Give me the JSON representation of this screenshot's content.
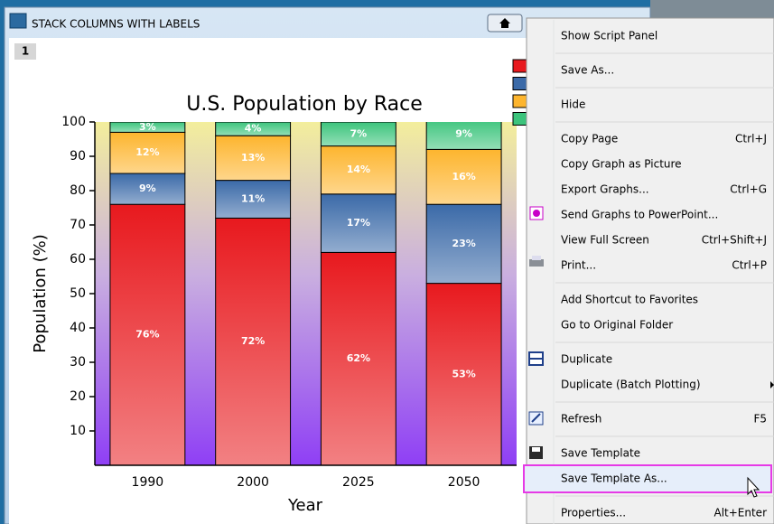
{
  "window": {
    "title": "STACK COLUMNS WITH LABELS",
    "tab": "1"
  },
  "chart_data": {
    "type": "bar",
    "stacked": true,
    "title": "U.S. Population by Race",
    "xlabel": "Year",
    "ylabel": "Population (%)",
    "categories": [
      "1990",
      "2000",
      "2025",
      "2050"
    ],
    "series": [
      {
        "color": "#e8191e",
        "values": [
          76,
          72,
          62,
          53
        ],
        "value_labels": [
          "76%",
          "72%",
          "62%",
          "53%"
        ]
      },
      {
        "color": "#3b6aa8",
        "values": [
          9,
          11,
          17,
          23
        ],
        "value_labels": [
          "9%",
          "11%",
          "17%",
          "23%"
        ]
      },
      {
        "color": "#fdb52e",
        "values": [
          12,
          13,
          14,
          16
        ],
        "value_labels": [
          "12%",
          "13%",
          "14%",
          "16%"
        ]
      },
      {
        "color": "#3cc47c",
        "values": [
          3,
          4,
          7,
          9
        ],
        "value_labels": [
          "3%",
          "4%",
          "7%",
          "9%"
        ]
      }
    ],
    "ylim": [
      0,
      100
    ],
    "yticks": [
      10,
      20,
      30,
      40,
      50,
      60,
      70,
      80,
      90,
      100
    ]
  },
  "menu": {
    "items": [
      {
        "label": "Show Script Panel"
      },
      {
        "label": "Save As..."
      },
      {
        "label": "Hide"
      },
      {
        "label": "Copy Page",
        "shortcut": "Ctrl+J"
      },
      {
        "label": "Copy Graph as Picture"
      },
      {
        "label": "Export Graphs...",
        "shortcut": "Ctrl+G"
      },
      {
        "label": "Send Graphs to PowerPoint..."
      },
      {
        "label": "View Full Screen",
        "shortcut": "Ctrl+Shift+J"
      },
      {
        "label": "Print...",
        "shortcut": "Ctrl+P"
      },
      {
        "label": "Add Shortcut to Favorites"
      },
      {
        "label": "Go to Original Folder",
        "disabled": true
      },
      {
        "label": "Duplicate"
      },
      {
        "label": "Duplicate (Batch Plotting)",
        "submenu": true
      },
      {
        "label": "Refresh",
        "shortcut": "F5"
      },
      {
        "label": "Save Template"
      },
      {
        "label": "Save Template As...",
        "highlighted": true
      },
      {
        "label": "Properties...",
        "shortcut": "Alt+Enter"
      }
    ]
  }
}
